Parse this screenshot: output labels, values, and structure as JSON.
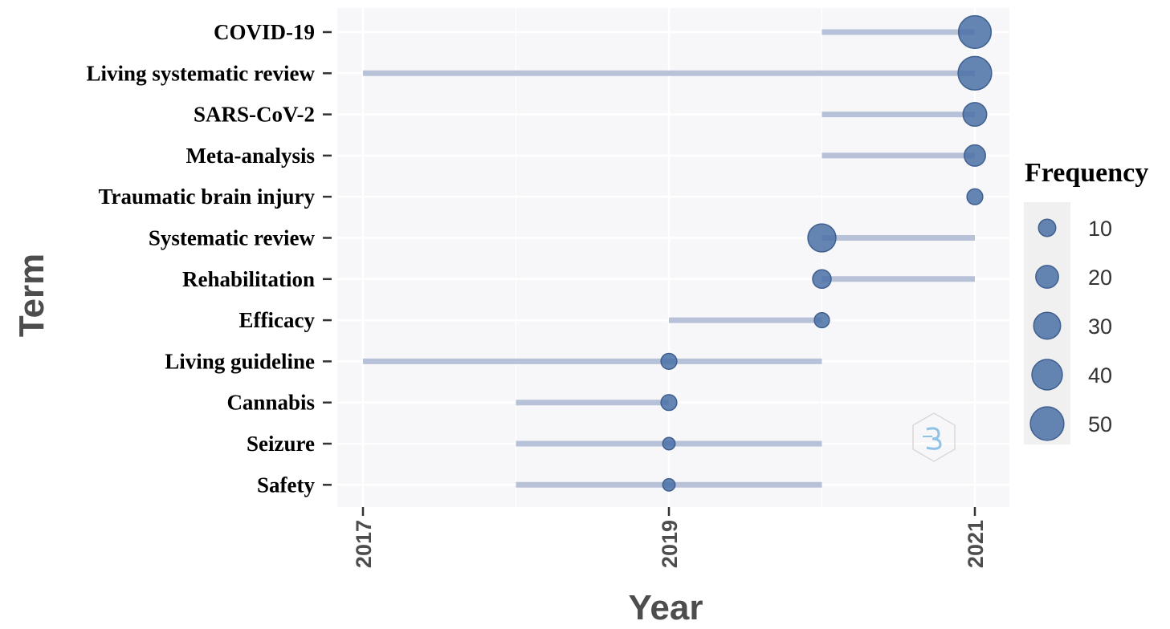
{
  "chart_data": {
    "type": "scatter",
    "subtype": "trend-topics-timeline",
    "xlabel": "Year",
    "ylabel": "Term",
    "x_ticks": [
      "2017",
      "2019",
      "2021"
    ],
    "xlim": [
      2016.96,
      2021.2
    ],
    "grid": true,
    "legend_title": "Frequency",
    "legend_position": "right",
    "colors": {
      "point": "#4a70a6",
      "range_line": "#b7c2d9",
      "panel_bg": "#f7f7f9",
      "gridline": "#ffffff",
      "legend_bg": "#f0f0f0",
      "axis_text": "#4d4d4d"
    },
    "legend_sizes": [
      {
        "label": "10",
        "value": 10
      },
      {
        "label": "20",
        "value": 20
      },
      {
        "label": "30",
        "value": 30
      },
      {
        "label": "40",
        "value": 40
      },
      {
        "label": "50",
        "value": 50
      }
    ],
    "terms": [
      {
        "term": "COVID-19",
        "year_start": 2020,
        "year_end": 2021,
        "peak_year": 2021,
        "frequency": 47
      },
      {
        "term": "Living systematic review",
        "year_start": 2017,
        "year_end": 2021,
        "peak_year": 2021,
        "frequency": 50
      },
      {
        "term": "SARS-CoV-2",
        "year_start": 2020,
        "year_end": 2021,
        "peak_year": 2021,
        "frequency": 22
      },
      {
        "term": "Meta-analysis",
        "year_start": 2020,
        "year_end": 2021,
        "peak_year": 2021,
        "frequency": 17
      },
      {
        "term": "Traumatic brain injury",
        "year_start": 2021,
        "year_end": 2021,
        "peak_year": 2021,
        "frequency": 8
      },
      {
        "term": "Systematic review",
        "year_start": 2020,
        "year_end": 2021,
        "peak_year": 2020,
        "frequency": 33
      },
      {
        "term": "Rehabilitation",
        "year_start": 2020,
        "year_end": 2021,
        "peak_year": 2020,
        "frequency": 12
      },
      {
        "term": "Efficacy",
        "year_start": 2019,
        "year_end": 2020,
        "peak_year": 2020,
        "frequency": 7
      },
      {
        "term": "Living guideline",
        "year_start": 2017,
        "year_end": 2020,
        "peak_year": 2019,
        "frequency": 8
      },
      {
        "term": "Cannabis",
        "year_start": 2018,
        "year_end": 2019,
        "peak_year": 2019,
        "frequency": 8
      },
      {
        "term": "Seizure",
        "year_start": 2018,
        "year_end": 2020,
        "peak_year": 2019,
        "frequency": 4
      },
      {
        "term": "Safety",
        "year_start": 2018,
        "year_end": 2020,
        "peak_year": 2019,
        "frequency": 4
      }
    ]
  },
  "watermark_icon": "bibliometrix-hexagon-logo-icon"
}
